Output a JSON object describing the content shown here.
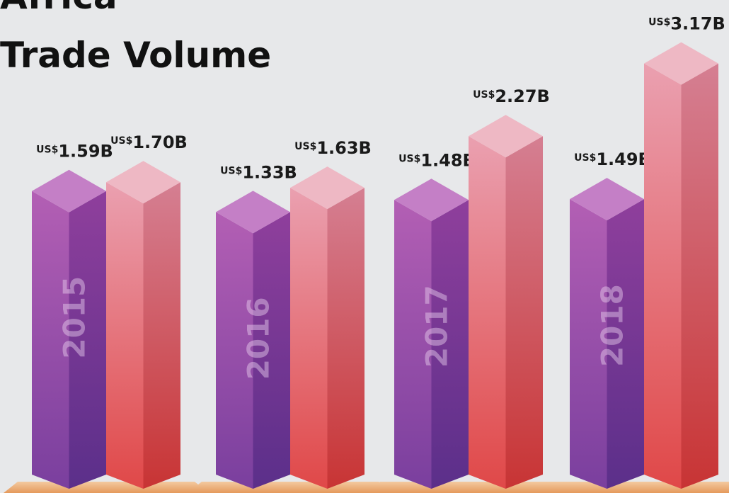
{
  "chart_data": {
    "type": "bar3d",
    "title_lines": [
      "Africa",
      "Trade Volume"
    ],
    "categories": [
      "2015",
      "2016",
      "2017",
      "2018"
    ],
    "series": [
      {
        "color": "#9b4fa8",
        "values": [
          1.59,
          1.33,
          1.48,
          1.49
        ],
        "value_labels": [
          "US$1.59B",
          "US$1.33B",
          "US$1.48B",
          "US$1.49B"
        ]
      },
      {
        "color": "#e0505a",
        "values": [
          1.7,
          1.63,
          2.27,
          3.17
        ],
        "value_labels": [
          "US$1.70B",
          "US$1.63B",
          "US$2.27B",
          "US$3.17B"
        ]
      }
    ]
  }
}
